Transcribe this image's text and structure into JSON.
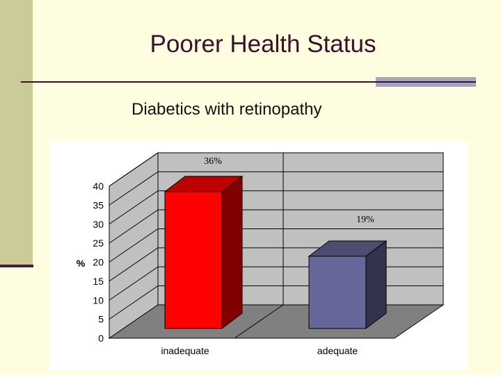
{
  "slide": {
    "title": "Poorer Health Status",
    "subtitle": "Diabetics with retinopathy"
  },
  "colors": {
    "background": "#fffde0",
    "title": "#3a0f2c",
    "bar_inadequate": "#ff0000",
    "bar_adequate": "#666699",
    "wall": "#c0c0c0",
    "floor": "#808080"
  },
  "chart_data": {
    "type": "bar",
    "style": "3d",
    "categories": [
      "inadequate",
      "adequate"
    ],
    "values": [
      36,
      19
    ],
    "data_labels": [
      "36%",
      "19%"
    ],
    "ylabel": "%",
    "xlabel": "",
    "ylim": [
      0,
      40
    ],
    "yticks": [
      0,
      5,
      10,
      15,
      20,
      25,
      30,
      35,
      40
    ],
    "grid": true,
    "legend": "none"
  }
}
